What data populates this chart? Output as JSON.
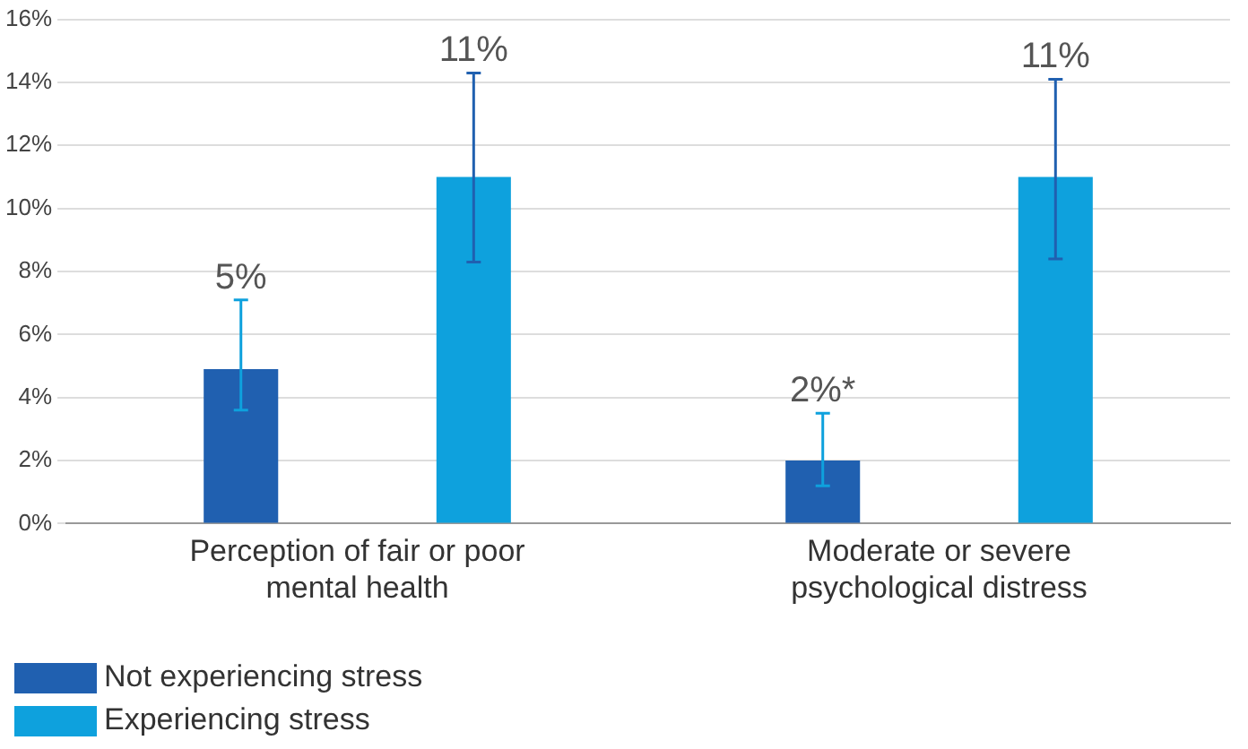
{
  "chart_data": {
    "type": "bar",
    "categories": [
      "Perception of fair or poor mental health",
      "Moderate or severe psychological distress"
    ],
    "series": [
      {
        "name": "Not experiencing stress",
        "color": "#2060b0",
        "values": [
          4.9,
          2.0
        ],
        "errors": [
          [
            3.6,
            7.1
          ],
          [
            1.2,
            3.5
          ]
        ],
        "value_labels": [
          "5%",
          "2%*"
        ]
      },
      {
        "name": "Experiencing stress",
        "color": "#0ea1dd",
        "values": [
          11,
          11
        ],
        "errors": [
          [
            8.3,
            14.3
          ],
          [
            8.4,
            14.1
          ]
        ],
        "value_labels": [
          "11%",
          "11%"
        ]
      }
    ],
    "ylim": [
      0,
      16
    ],
    "yticks": [
      {
        "value": 0,
        "label": "0%"
      },
      {
        "value": 2,
        "label": "2%"
      },
      {
        "value": 4,
        "label": "4%"
      },
      {
        "value": 6,
        "label": "6%"
      },
      {
        "value": 8,
        "label": "8%"
      },
      {
        "value": 10,
        "label": "10%"
      },
      {
        "value": 12,
        "label": "12%"
      },
      {
        "value": 14,
        "label": "14%"
      },
      {
        "value": 16,
        "label": "16%"
      }
    ],
    "grid": "y",
    "legend": "bottom left"
  }
}
